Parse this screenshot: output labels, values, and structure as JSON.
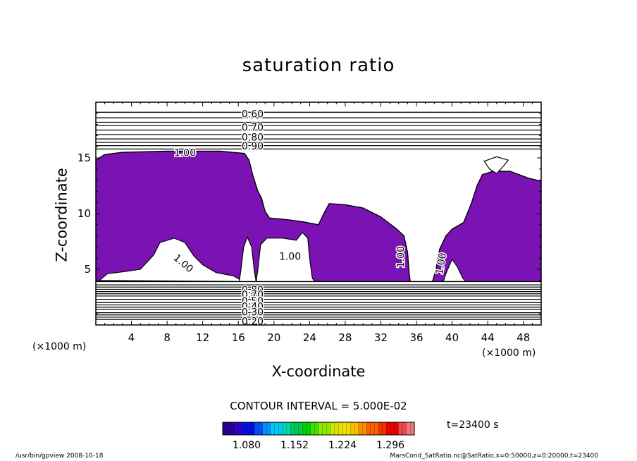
{
  "chart_data": {
    "type": "contour",
    "title": "saturation ratio",
    "xlabel": "X-coordinate",
    "ylabel": "Z-coordinate",
    "x_unit": "(×1000 m)",
    "y_unit": "(×1000 m)",
    "xlim": [
      0,
      50
    ],
    "ylim": [
      0,
      20
    ],
    "x_ticks": [
      4,
      8,
      12,
      16,
      20,
      24,
      28,
      32,
      36,
      40,
      44,
      48
    ],
    "y_ticks": [
      5,
      10,
      15
    ],
    "contour_interval_text": "CONTOUR INTERVAL = 5.000E-02",
    "upper_contour_labels": [
      {
        "text": "0.60",
        "x": 17.6,
        "z": 18.9
      },
      {
        "text": "0.70",
        "x": 17.6,
        "z": 17.7
      },
      {
        "text": "0.80",
        "x": 17.6,
        "z": 16.8
      },
      {
        "text": "0.90",
        "x": 17.6,
        "z": 16.0
      },
      {
        "text": "1.00",
        "x": 10.0,
        "z": 15.4
      }
    ],
    "lower_contour_labels": [
      {
        "text": "0.80",
        "x": 17.6,
        "z": 3.1
      },
      {
        "text": "0.70",
        "x": 17.6,
        "z": 2.7
      },
      {
        "text": "0.50",
        "x": 17.6,
        "z": 2.1
      },
      {
        "text": "0.40",
        "x": 17.6,
        "z": 1.6
      },
      {
        "text": "0.30",
        "x": 17.6,
        "z": 1.1
      },
      {
        "text": "0.20",
        "x": 17.6,
        "z": 0.3
      }
    ],
    "interior_labels": [
      {
        "text": "1.00",
        "x": 21.8,
        "z": 6.1
      },
      {
        "text": "1.00",
        "x": 9.8,
        "z": 5.5
      },
      {
        "text": "1.00",
        "x": 34.3,
        "z": 6.1
      },
      {
        "text": "1.00",
        "x": 38.8,
        "z": 5.5
      }
    ],
    "upper_contour_levels_z": [
      19.1,
      18.6,
      18.2,
      17.9,
      17.5,
      17.1,
      16.7,
      16.4,
      16.1,
      15.8
    ],
    "lower_contour_levels_z": [
      3.6,
      3.4,
      3.2,
      3.0,
      2.8,
      2.6,
      2.3,
      2.0,
      1.8,
      1.6,
      1.4,
      1.1,
      0.9,
      0.7,
      0.5
    ],
    "fill_color": "#7b12b4",
    "fill_region_outline": [
      [
        0,
        14.8
      ],
      [
        1,
        15.3
      ],
      [
        3,
        15.5
      ],
      [
        8,
        15.6
      ],
      [
        14,
        15.6
      ],
      [
        16.7,
        15.4
      ],
      [
        17.2,
        14.8
      ],
      [
        17.6,
        13.5
      ],
      [
        18.2,
        12.0
      ],
      [
        18.6,
        11.4
      ],
      [
        19.0,
        10.2
      ],
      [
        19.5,
        9.6
      ],
      [
        21.0,
        9.5
      ],
      [
        23.0,
        9.3
      ],
      [
        25.0,
        9.0
      ],
      [
        25.6,
        10.0
      ],
      [
        26.2,
        10.9
      ],
      [
        28.0,
        10.8
      ],
      [
        30.0,
        10.5
      ],
      [
        32.0,
        9.7
      ],
      [
        33.8,
        8.6
      ],
      [
        34.6,
        8.0
      ],
      [
        35.0,
        6.5
      ],
      [
        35.2,
        4.5
      ],
      [
        35.3,
        3.9
      ],
      [
        37.8,
        3.9
      ],
      [
        38.2,
        5.0
      ],
      [
        38.6,
        6.8
      ],
      [
        39.3,
        8.0
      ],
      [
        40.0,
        8.6
      ],
      [
        41.3,
        9.2
      ],
      [
        42.2,
        11.0
      ],
      [
        42.8,
        12.5
      ],
      [
        43.4,
        13.5
      ],
      [
        44.6,
        13.8
      ],
      [
        46.5,
        13.8
      ],
      [
        48.5,
        13.2
      ],
      [
        50,
        12.9
      ],
      [
        50,
        3.9
      ],
      [
        0,
        3.9
      ]
    ],
    "white_holes": [
      [
        [
          0.4,
          4.0
        ],
        [
          1.3,
          4.6
        ],
        [
          3.3,
          4.8
        ],
        [
          5.0,
          5.0
        ],
        [
          6.5,
          6.3
        ],
        [
          7.2,
          7.4
        ],
        [
          8.8,
          7.8
        ],
        [
          10.0,
          7.4
        ],
        [
          11.0,
          6.2
        ],
        [
          12.0,
          5.4
        ],
        [
          13.5,
          4.7
        ],
        [
          15.5,
          4.4
        ],
        [
          16.5,
          3.9
        ]
      ],
      [
        [
          16.1,
          3.9
        ],
        [
          16.3,
          5.0
        ],
        [
          16.6,
          7.0
        ],
        [
          17.0,
          7.9
        ],
        [
          17.5,
          7.0
        ],
        [
          17.8,
          4.8
        ],
        [
          18.0,
          3.9
        ]
      ],
      [
        [
          18.0,
          3.9
        ],
        [
          18.2,
          5.0
        ],
        [
          18.5,
          7.2
        ],
        [
          19.2,
          7.8
        ],
        [
          21.0,
          7.8
        ],
        [
          22.5,
          7.6
        ],
        [
          23.2,
          8.3
        ],
        [
          23.8,
          7.8
        ],
        [
          24.0,
          6.0
        ],
        [
          24.3,
          4.2
        ],
        [
          24.6,
          3.9
        ]
      ],
      [
        [
          39.0,
          3.9
        ],
        [
          39.4,
          4.8
        ],
        [
          40.0,
          5.9
        ],
        [
          40.6,
          5.2
        ],
        [
          41.2,
          4.2
        ],
        [
          41.5,
          3.9
        ]
      ],
      [
        [
          43.6,
          14.7
        ],
        [
          44.2,
          14.0
        ],
        [
          45.0,
          13.6
        ],
        [
          45.8,
          14.3
        ],
        [
          46.3,
          14.8
        ],
        [
          45.0,
          15.1
        ]
      ]
    ],
    "colorbar": {
      "tick_labels": [
        "1.080",
        "1.152",
        "1.224",
        "1.296"
      ],
      "range": [
        1.044,
        1.332
      ],
      "colors": [
        "#280094",
        "#3200c8",
        "#0010dc",
        "#0050f0",
        "#0090f8",
        "#00c8f0",
        "#00d8b0",
        "#00c850",
        "#00d000",
        "#40e000",
        "#90e800",
        "#d0e800",
        "#f0e000",
        "#f8c000",
        "#f89000",
        "#f86000",
        "#f03000",
        "#e80000",
        "#e84848",
        "#f07878"
      ]
    },
    "time_label": "t=23400  s"
  },
  "footer": {
    "left": "/usr/bin/gpview   2008-10-18",
    "right": "MarsCond_SatRatio.nc@SatRatio,x=0:50000,z=0:20000,t=23400"
  }
}
